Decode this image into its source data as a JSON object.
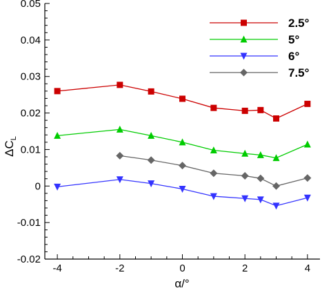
{
  "chart_data": {
    "type": "line",
    "xlabel": "α/°",
    "ylabel_main": "ΔC",
    "ylabel_sub": "L",
    "xlim": [
      -4.4,
      4.4
    ],
    "ylim": [
      -0.02,
      0.05
    ],
    "xticks": [
      -4,
      -2,
      0,
      2,
      4
    ],
    "yticks": [
      -0.02,
      -0.01,
      0,
      0.01,
      0.02,
      0.03,
      0.04,
      0.05
    ],
    "ytick_labels": [
      "-0.02",
      "-0.01",
      "0",
      "0.01",
      "0.02",
      "0.03",
      "0.04",
      "0.05"
    ],
    "xtick_labels": [
      "-4",
      "-2",
      "0",
      "2",
      "4"
    ],
    "grid": false,
    "legend_position": "top-right",
    "series": [
      {
        "name": "2.5°",
        "color": "#cc0000",
        "marker": "square",
        "x": [
          -4,
          -2,
          -1,
          0,
          1,
          2,
          2.5,
          3,
          4
        ],
        "y": [
          0.026,
          0.0277,
          0.0259,
          0.0239,
          0.0214,
          0.0206,
          0.0208,
          0.0185,
          0.0225
        ]
      },
      {
        "name": "5°",
        "color": "#00cc00",
        "marker": "triangle-up",
        "x": [
          -4,
          -2,
          -1,
          0,
          1,
          2,
          2.5,
          3,
          4
        ],
        "y": [
          0.0138,
          0.0155,
          0.0138,
          0.012,
          0.0098,
          0.0089,
          0.0085,
          0.0077,
          0.0114
        ]
      },
      {
        "name": "6°",
        "color": "#3333ff",
        "marker": "triangle-down",
        "x": [
          -4,
          -2,
          -1,
          0,
          1,
          2,
          2.5,
          3,
          4
        ],
        "y": [
          -0.0002,
          0.0018,
          0.0007,
          -0.0008,
          -0.0028,
          -0.0034,
          -0.0037,
          -0.0054,
          -0.0032
        ]
      },
      {
        "name": "7.5°",
        "color": "#666666",
        "marker": "diamond",
        "x": [
          -2,
          -1,
          0,
          1,
          2,
          2.5,
          3,
          4
        ],
        "y": [
          0.0083,
          0.0071,
          0.0056,
          0.0035,
          0.0028,
          0.0021,
          0.0,
          0.0022
        ]
      }
    ]
  }
}
